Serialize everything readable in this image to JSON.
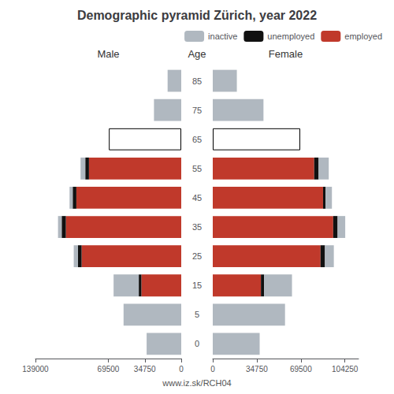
{
  "title": "Demographic pyramid Zürich, year 2022",
  "subtitle": "www.iz.sk/RCH04",
  "chart_data": [
    {
      "type": "bar",
      "orientation": "horizontal",
      "stacked": true,
      "grid": false,
      "title": "Male",
      "ylabel": "Age",
      "categories": [
        0,
        5,
        15,
        25,
        35,
        45,
        55,
        65,
        75,
        85
      ],
      "xlim": [
        0,
        139000
      ],
      "xticks": [
        0,
        34750,
        69500,
        139000
      ],
      "series": [
        {
          "name": "inactive",
          "color": "#b0b8c0",
          "colors": [
            "#b0b8c0",
            "#b0b8c0",
            "#b0b8c0",
            "#b0b8c0",
            "#b0b8c0",
            "#b0b8c0",
            "#b0b8c0",
            "#ffffff",
            "#b0b8c0",
            "#b0b8c0"
          ],
          "values": [
            33000,
            55000,
            24000,
            4000,
            3500,
            3000,
            4500,
            69000,
            26000,
            13000
          ]
        },
        {
          "name": "unemployed",
          "color": "#111111",
          "values": [
            0,
            0,
            2500,
            3500,
            4000,
            3500,
            3500,
            0,
            0,
            0
          ]
        },
        {
          "name": "employed",
          "color": "#c0392b",
          "values": [
            0,
            0,
            38000,
            95000,
            110000,
            100000,
            88000,
            0,
            0,
            0
          ]
        }
      ]
    },
    {
      "type": "bar",
      "orientation": "horizontal",
      "stacked": true,
      "grid": false,
      "title": "Female",
      "legend": "upper right",
      "categories": [
        0,
        5,
        15,
        25,
        35,
        45,
        55,
        65,
        75,
        85
      ],
      "xlim": [
        0,
        115000
      ],
      "xticks": [
        0,
        34750,
        69500,
        104250
      ],
      "series": [
        {
          "name": "inactive",
          "color": "#b0b8c0",
          "colors": [
            "#b0b8c0",
            "#b0b8c0",
            "#b0b8c0",
            "#b0b8c0",
            "#b0b8c0",
            "#b0b8c0",
            "#b0b8c0",
            "#ffffff",
            "#b0b8c0",
            "#b0b8c0"
          ],
          "values": [
            37000,
            57000,
            22000,
            7000,
            6000,
            5000,
            8000,
            69000,
            40000,
            19000
          ]
        },
        {
          "name": "unemployed",
          "color": "#111111",
          "values": [
            0,
            0,
            2500,
            3500,
            3500,
            2000,
            3500,
            0,
            0,
            0
          ]
        },
        {
          "name": "employed",
          "color": "#c0392b",
          "values": [
            0,
            0,
            38000,
            85000,
            95000,
            87000,
            80000,
            0,
            0,
            0
          ]
        }
      ]
    }
  ]
}
